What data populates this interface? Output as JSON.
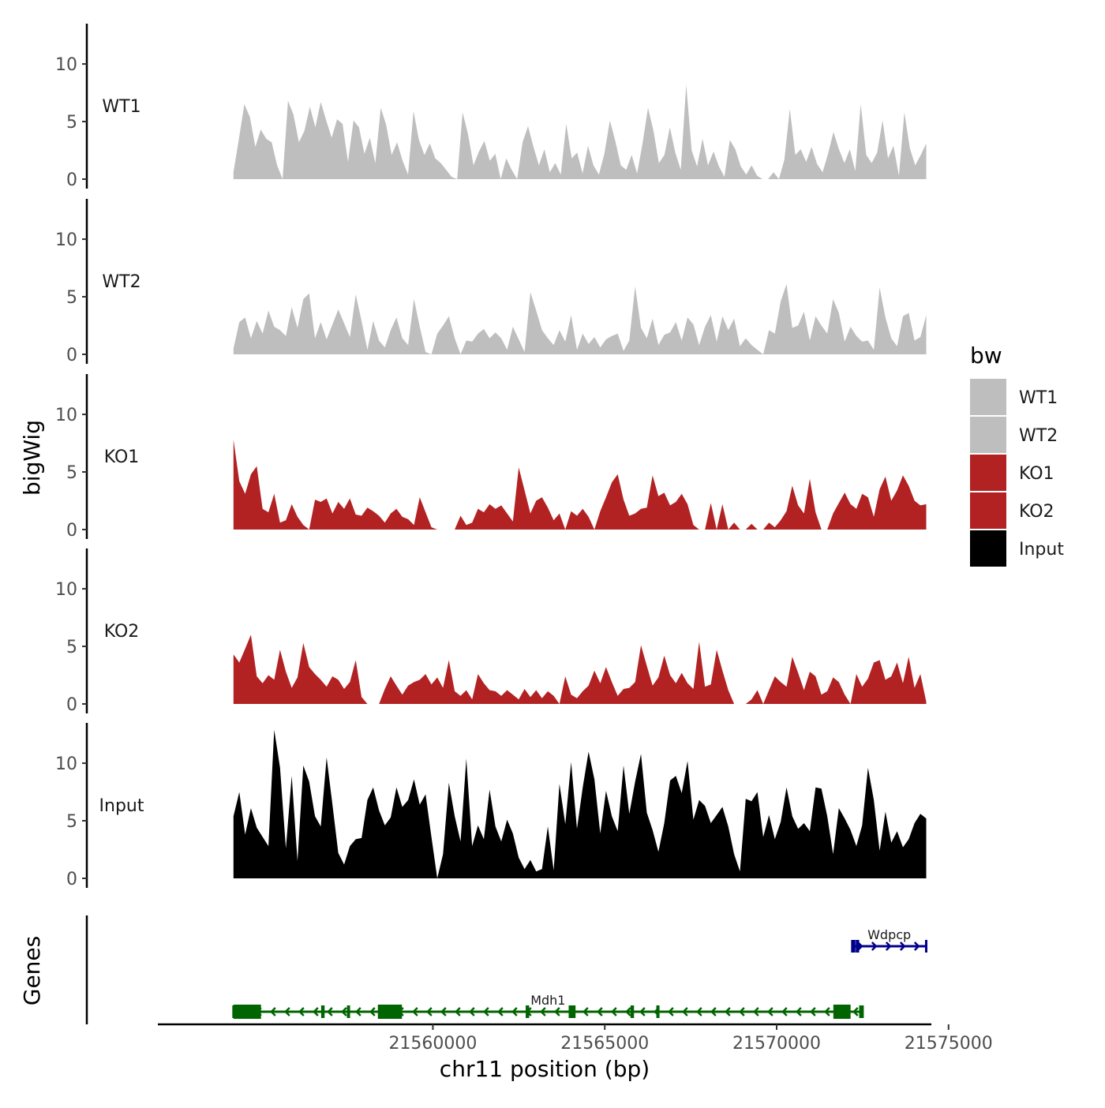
{
  "chart_data": {
    "type": "area",
    "title": "",
    "ylabel": "bigWig",
    "ylim": [
      0,
      13.5
    ],
    "yticks": [
      0,
      5,
      10
    ],
    "xlabel": "chr11 position (bp)",
    "xlim": [
      21552000,
      21574500
    ],
    "xticks": [
      21560000,
      21565000,
      21570000,
      21575000
    ],
    "xtick_labels": [
      "21560000",
      "21565000",
      "21570000",
      "21575000"
    ],
    "signal_range": [
      21554200,
      21574350
    ],
    "legend": {
      "title": "bw",
      "position": "right",
      "entries": [
        {
          "label": "WT1",
          "color": "#bebebe"
        },
        {
          "label": "WT2",
          "color": "#bebebe"
        },
        {
          "label": "KO1",
          "color": "#b22222"
        },
        {
          "label": "KO2",
          "color": "#b22222"
        },
        {
          "label": "Input",
          "color": "#000000"
        }
      ]
    },
    "series": [
      {
        "name": "WT1",
        "color": "#bebebe",
        "values": [
          0.6,
          3.5,
          6.5,
          5.4,
          2.8,
          4.3,
          3.5,
          3.2,
          1.2,
          0,
          6.8,
          5.6,
          3.2,
          4.2,
          6.3,
          4.5,
          6.7,
          5.1,
          3.6,
          5.2,
          4.8,
          1.5,
          5.1,
          4.5,
          2.2,
          3.6,
          1.4,
          6.2,
          4.7,
          2.1,
          3.2,
          1.6,
          0.4,
          5.9,
          3.4,
          2.1,
          3.1,
          1.8,
          1.4,
          0.8,
          0.2,
          0,
          5.8,
          3.9,
          1.2,
          2.4,
          3.3,
          1.6,
          2.2,
          0,
          1.8,
          0.8,
          0,
          3.2,
          4.6,
          2.8,
          1.2,
          2.6,
          0.6,
          1.4,
          0.4,
          4.8,
          1.8,
          2.3,
          0.5,
          2.9,
          1.2,
          0.4,
          2.2,
          5.1,
          3.3,
          1.2,
          0.8,
          2.1,
          0.5,
          3.1,
          6.2,
          4.2,
          1.4,
          2.1,
          4.5,
          2.3,
          0.8,
          8.2,
          2.5,
          1.1,
          3.5,
          1.2,
          2.4,
          1.1,
          0.2,
          3.4,
          2.6,
          1.1,
          0.4,
          1.2,
          0.3,
          0,
          0,
          0.6,
          0,
          1.7,
          6.1,
          2.1,
          2.6,
          1.5,
          2.8,
          1.3,
          0.6,
          2.2,
          4.1,
          2.6,
          1.4,
          2.6,
          0.7,
          6.5,
          2.1,
          1.4,
          2.3,
          5.1,
          1.8,
          2.9,
          0.3,
          5.8,
          2.7,
          1.2,
          2.1,
          3.1
        ]
      },
      {
        "name": "WT2",
        "color": "#bebebe",
        "values": [
          0.5,
          2.8,
          3.2,
          1.4,
          2.9,
          1.8,
          3.8,
          2.4,
          2.1,
          1.6,
          4.1,
          2.3,
          4.8,
          5.3,
          1.4,
          2.8,
          1.3,
          2.6,
          3.9,
          2.7,
          1.5,
          5.2,
          2.9,
          0.4,
          2.9,
          1.2,
          0.6,
          2.1,
          3.2,
          1.4,
          0.8,
          4.8,
          2.4,
          0.2,
          0,
          1.8,
          2.5,
          3.3,
          1.4,
          0,
          1.2,
          1.1,
          1.8,
          2.2,
          1.4,
          1.9,
          1.4,
          0.4,
          2.4,
          1.3,
          0.2,
          5.4,
          3.8,
          2.1,
          1.4,
          0.8,
          2.1,
          1.1,
          3.4,
          0.4,
          1.8,
          0.9,
          1.5,
          0.6,
          1.3,
          1.6,
          1.8,
          0.3,
          1.2,
          5.9,
          2.3,
          1.4,
          3.1,
          0.8,
          1.7,
          1.9,
          2.8,
          1.2,
          3.2,
          2.6,
          0.8,
          2.4,
          3.4,
          1.1,
          3.3,
          2.1,
          3.1,
          0.7,
          1.4,
          0.8,
          0.4,
          0,
          2.1,
          1.8,
          4.6,
          6.1,
          2.3,
          2.5,
          3.7,
          1.2,
          3.3,
          2.5,
          1.8,
          4.8,
          3.6,
          1.1,
          2.4,
          1.6,
          1.1,
          1.2,
          0.4,
          5.8,
          3.2,
          1.4,
          0.7,
          3.3,
          3.6,
          1.2,
          1.5,
          3.4
        ]
      },
      {
        "name": "KO1",
        "color": "#b22222",
        "values": [
          7.8,
          4.2,
          3.1,
          4.8,
          5.5,
          1.8,
          1.5,
          3.1,
          0.6,
          0.8,
          2.2,
          1.1,
          0.4,
          0,
          2.6,
          2.4,
          2.7,
          1.4,
          2.4,
          1.8,
          2.7,
          1.3,
          1.2,
          1.9,
          1.6,
          1.2,
          0.6,
          1.4,
          1.8,
          1.1,
          0.9,
          0.4,
          2.8,
          1.5,
          0.2,
          0,
          0,
          0,
          0,
          1.2,
          0.4,
          0.6,
          1.8,
          1.5,
          2.2,
          1.8,
          2.1,
          1.4,
          0.7,
          5.4,
          3.4,
          1.4,
          2.5,
          2.8,
          1.9,
          0.8,
          1.4,
          0,
          1.6,
          1.2,
          1.8,
          1.1,
          0,
          1.6,
          2.8,
          4.1,
          4.8,
          2.6,
          1.2,
          1.4,
          1.8,
          1.9,
          4.7,
          2.9,
          3.2,
          2.1,
          2.4,
          3.1,
          2.2,
          0.4,
          0,
          0,
          2.3,
          0,
          2.2,
          0,
          0.6,
          0,
          0,
          0.5,
          0,
          0,
          0.6,
          0.2,
          0.8,
          1.6,
          3.8,
          2.1,
          1.4,
          4.4,
          1.5,
          0,
          0,
          1.4,
          2.3,
          3.2,
          2.2,
          1.8,
          3.1,
          2.8,
          1.1,
          3.5,
          4.6,
          2.5,
          3.4,
          4.7,
          3.8,
          2.5,
          2.1,
          2.2
        ]
      },
      {
        "name": "KO2",
        "color": "#b22222",
        "values": [
          4.3,
          3.6,
          4.8,
          6.0,
          2.4,
          1.8,
          2.5,
          2.1,
          4.7,
          2.8,
          1.4,
          2.3,
          5.3,
          3.2,
          2.6,
          2.1,
          1.5,
          2.4,
          2.1,
          1.3,
          1.9,
          3.8,
          0.6,
          0,
          0,
          0,
          1.3,
          2.4,
          1.6,
          0.8,
          1.6,
          1.9,
          2.1,
          2.6,
          1.7,
          2.3,
          1.4,
          3.8,
          1.1,
          0.7,
          1.2,
          0.4,
          2.6,
          1.8,
          1.2,
          1.1,
          0.7,
          1.2,
          0.8,
          0.4,
          1.3,
          0.6,
          1.2,
          0.5,
          1.1,
          0.7,
          0,
          2.4,
          0.8,
          0.5,
          1.1,
          1.6,
          2.9,
          1.8,
          3.2,
          1.9,
          0.7,
          1.3,
          1.4,
          1.9,
          5.1,
          3.3,
          1.6,
          2.3,
          4.2,
          2.5,
          1.8,
          2.7,
          1.8,
          1.3,
          5.4,
          1.5,
          1.7,
          4.7,
          2.9,
          1.2,
          0,
          0,
          0,
          0.4,
          1.2,
          0,
          1.2,
          2.4,
          1.9,
          1.5,
          4.1,
          2.7,
          1.2,
          2.8,
          2.4,
          0.8,
          1.1,
          2.3,
          1.9,
          0.8,
          0,
          2.6,
          1.5,
          2.2,
          3.6,
          3.8,
          2.1,
          2.4,
          3.6,
          1.8,
          4.1,
          1.4,
          2.6,
          0.2
        ]
      },
      {
        "name": "Input",
        "color": "#000000",
        "values": [
          5.4,
          7.5,
          3.8,
          6.1,
          4.4,
          3.6,
          2.8,
          12.9,
          9.6,
          2.6,
          8.9,
          1.5,
          9.8,
          8.4,
          5.4,
          4.5,
          10.5,
          6.4,
          2.2,
          1.2,
          2.8,
          3.4,
          3.5,
          6.8,
          7.9,
          5.9,
          4.6,
          5.3,
          7.9,
          6.2,
          6.8,
          8.6,
          6.4,
          7.3,
          3.6,
          0,
          2.1,
          8.3,
          5.4,
          3.2,
          10.4,
          2.8,
          4.6,
          3.4,
          7.7,
          4.5,
          3.2,
          5.1,
          3.9,
          1.8,
          0.8,
          1.6,
          0.6,
          0.8,
          4.5,
          0.7,
          8.2,
          4.7,
          10.1,
          4.3,
          7.9,
          11.0,
          8.6,
          3.9,
          7.6,
          5.4,
          4.1,
          9.8,
          5.6,
          8.4,
          10.8,
          5.7,
          4.2,
          2.3,
          4.8,
          8.5,
          8.9,
          7.4,
          10.2,
          5.1,
          6.8,
          6.3,
          4.8,
          5.5,
          6.2,
          4.5,
          2.1,
          0.6,
          6.9,
          6.7,
          7.5,
          3.6,
          5.5,
          3.4,
          4.9,
          7.9,
          5.4,
          4.3,
          4.8,
          4.1,
          7.9,
          7.8,
          5.4,
          2.1,
          6.1,
          5.2,
          4.2,
          2.8,
          4.6,
          9.6,
          6.8,
          2.4,
          5.8,
          3.1,
          4.1,
          2.7,
          3.4,
          4.8,
          5.6,
          5.2
        ]
      }
    ],
    "genes": [
      {
        "name": "Mdh1",
        "color": "#006400",
        "start": 21554200,
        "end": 21572500,
        "strand": "-",
        "exons": [
          [
            21554200,
            21555000
          ],
          [
            21556750,
            21556850
          ],
          [
            21557500,
            21557580
          ],
          [
            21558400,
            21559100
          ],
          [
            21562700,
            21562800
          ],
          [
            21563950,
            21564150
          ],
          [
            21565750,
            21565850
          ],
          [
            21566500,
            21566580
          ],
          [
            21571650,
            21572150
          ],
          [
            21572400,
            21572500
          ]
        ]
      },
      {
        "name": "Wdpcp",
        "color": "#00008b",
        "start": 21572200,
        "end": 21574350,
        "strand": "+",
        "exons": [
          [
            21572200,
            21572250
          ],
          [
            21572300,
            21572400
          ]
        ]
      }
    ],
    "genes_ylabel": "Genes"
  }
}
